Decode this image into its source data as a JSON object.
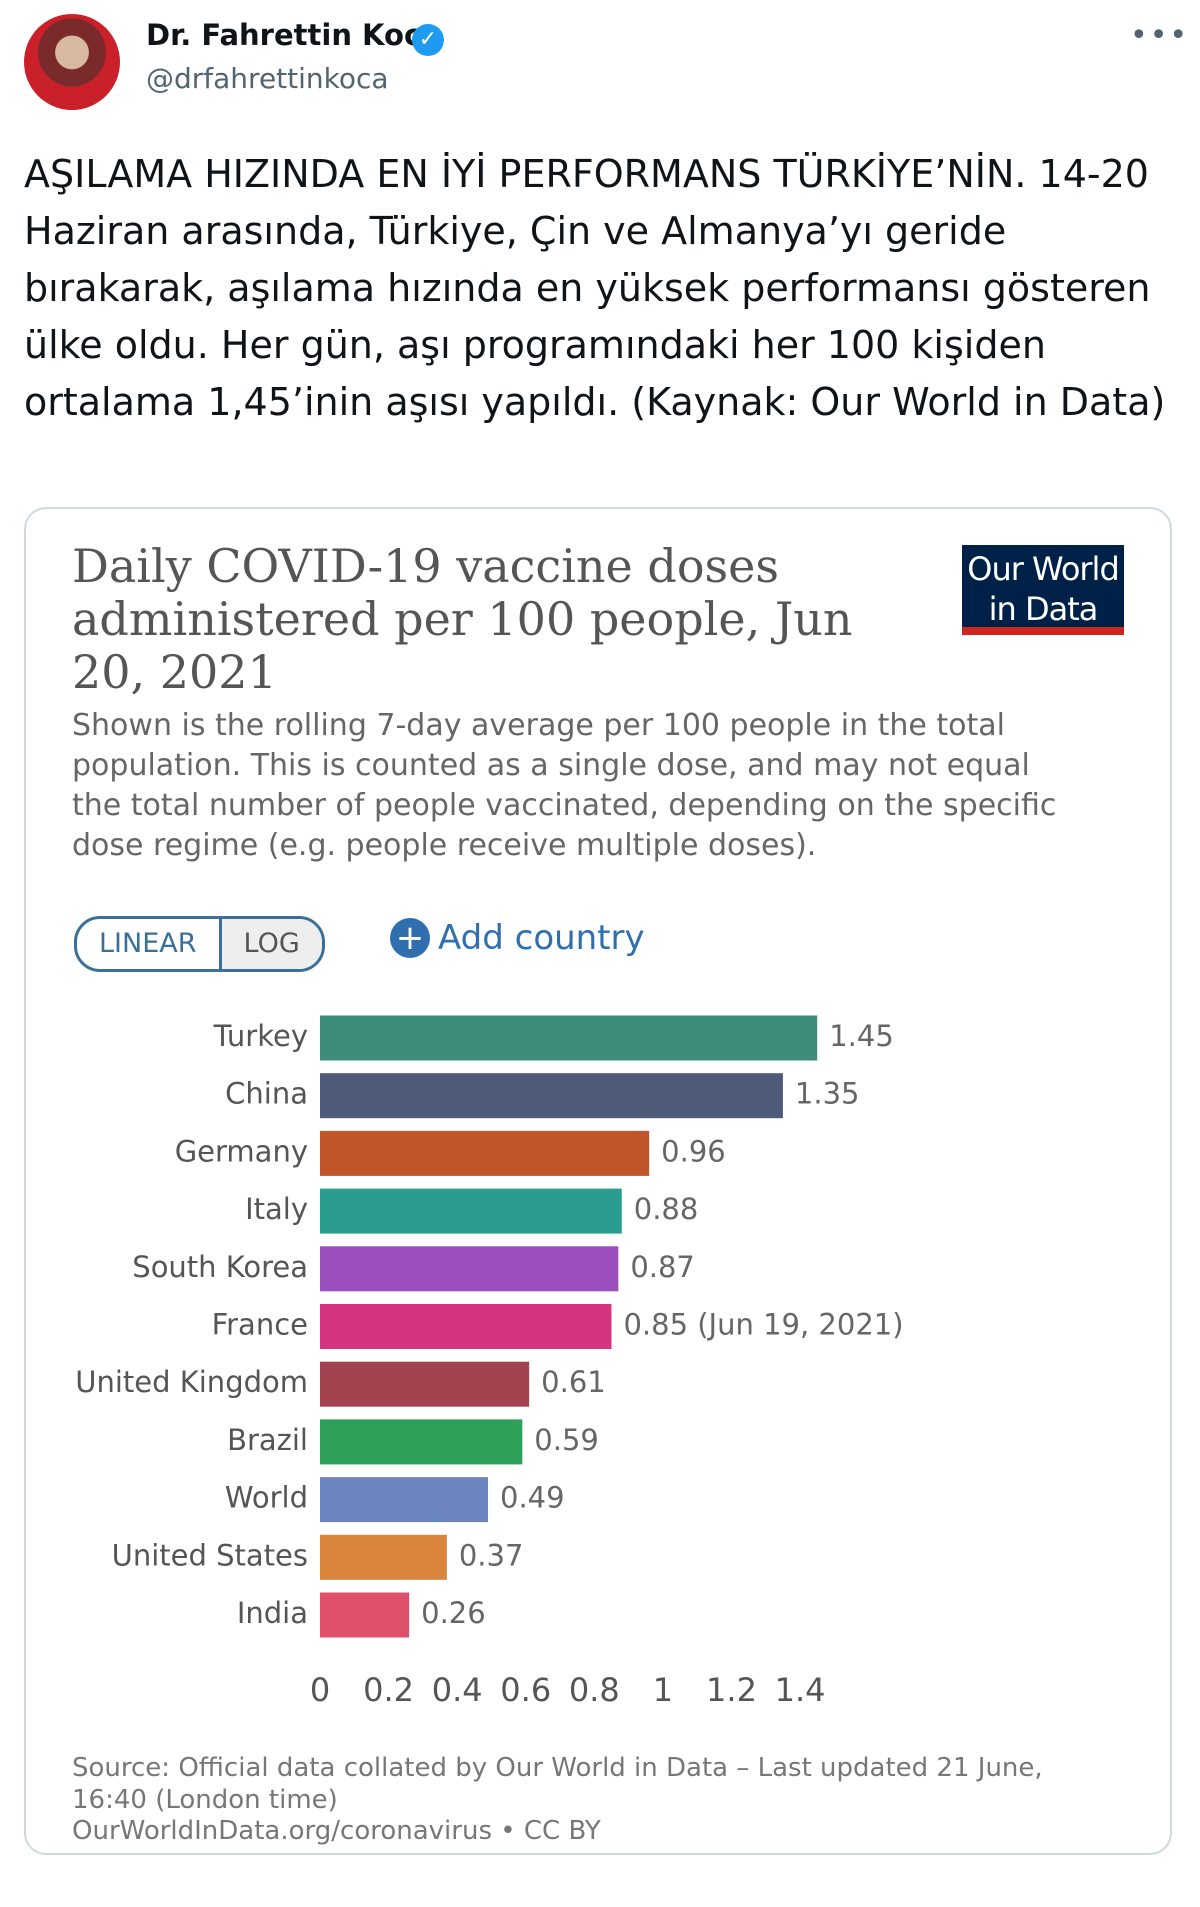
{
  "tweet": {
    "name": "Dr. Fahrettin Koca",
    "handle": "@drfahrettinkoca",
    "text": "AŞILAMA HIZINDA EN İYİ PERFORMANS TÜRKİYE’NİN. 14-20 Haziran arasında, Türkiye, Çin ve Almanya’yı geride bırakarak, aşılama hızında en yüksek performansı gösteren ülke oldu. Her gün, aşı programındaki her 100 kişiden ortalama 1,45’inin aşısı yapıldı. (Kaynak: Our World in Data)"
  },
  "card": {
    "logo": "Our World in Data",
    "buttons": [
      "LINEAR",
      "LOG"
    ],
    "add": "Add country",
    "source": "Source: Official data collated by Our World in Data – Last updated 21 June, 16:40 (London time)",
    "link": "OurWorldInData.org/coronavirus • CC BY"
  },
  "chart_data": {
    "type": "barh",
    "title": "Daily COVID-19 vaccine doses administered per 100 people, Jun 20, 2021",
    "subtitle": "Shown is the rolling 7-day average per 100 people in the total population. This is counted as a single dose, and may not equal the total number of people vaccinated, depending on the specific dose regime (e.g. people receive multiple doses).",
    "categories": [
      "Turkey",
      "China",
      "Germany",
      "Italy",
      "South Korea",
      "France",
      "United Kingdom",
      "Brazil",
      "World",
      "United States",
      "India"
    ],
    "values": [
      1.45,
      1.35,
      0.96,
      0.88,
      0.87,
      0.85,
      0.61,
      0.59,
      0.49,
      0.37,
      0.26
    ],
    "value_labels": [
      "1.45",
      "1.35",
      "0.96",
      "0.88",
      "0.87",
      "0.85 (Jun 19, 2021)",
      "0.61",
      "0.59",
      "0.49",
      "0.37",
      "0.26"
    ],
    "colors": [
      "#3d8c7c",
      "#4d5a78",
      "#c2552a",
      "#2a9d8f",
      "#9a4fbc",
      "#d5357f",
      "#a3434f",
      "#2ea05a",
      "#6b85c0",
      "#d9843b",
      "#e0506a"
    ],
    "xlim": [
      0,
      1.45
    ],
    "xticks": [
      0,
      0.2,
      0.4,
      0.6,
      0.8,
      1,
      1.2,
      1.4
    ]
  }
}
